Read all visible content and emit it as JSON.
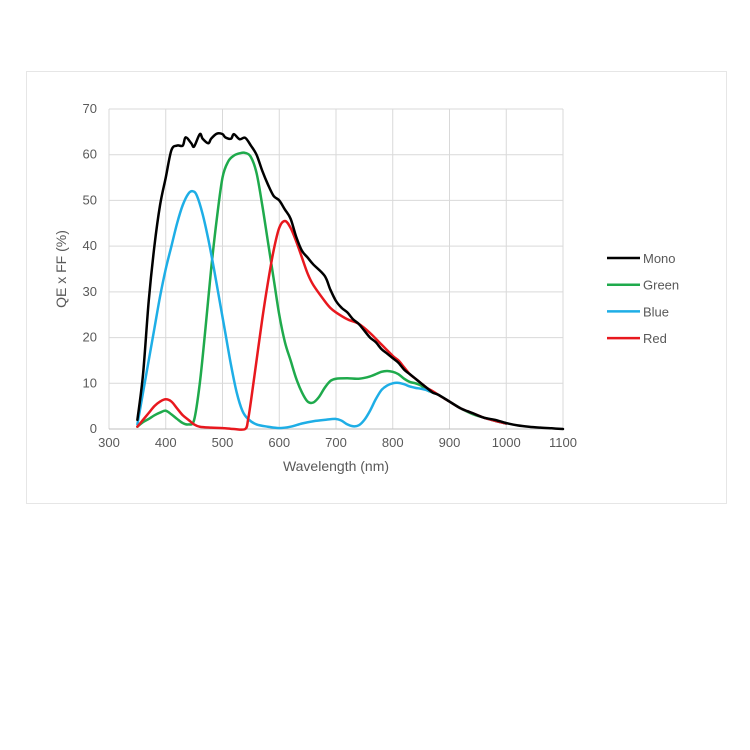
{
  "chart_data": {
    "type": "line",
    "title": "",
    "xlabel": "Wavelength (nm)",
    "ylabel": "QE x FF (%)",
    "xlim": [
      300,
      1100
    ],
    "ylim": [
      0,
      70
    ],
    "xticks": [
      "300",
      "400",
      "500",
      "600",
      "700",
      "800",
      "900",
      "1000",
      "1100"
    ],
    "yticks": [
      "0",
      "10",
      "20",
      "30",
      "40",
      "50",
      "60",
      "70"
    ],
    "grid": true,
    "legend_position": "right",
    "series": [
      {
        "name": "Mono",
        "color": "#000000",
        "points": [
          [
            350,
            2
          ],
          [
            360,
            12
          ],
          [
            370,
            28
          ],
          [
            380,
            40
          ],
          [
            390,
            49
          ],
          [
            400,
            55
          ],
          [
            410,
            61
          ],
          [
            420,
            62
          ],
          [
            430,
            62
          ],
          [
            435,
            63.8
          ],
          [
            445,
            62.5
          ],
          [
            450,
            61.8
          ],
          [
            460,
            64.5
          ],
          [
            465,
            63.5
          ],
          [
            475,
            62.5
          ],
          [
            480,
            63.5
          ],
          [
            490,
            64.6
          ],
          [
            500,
            64.5
          ],
          [
            505,
            63.8
          ],
          [
            515,
            63.5
          ],
          [
            520,
            64.5
          ],
          [
            530,
            63.4
          ],
          [
            540,
            63.7
          ],
          [
            550,
            62
          ],
          [
            560,
            60
          ],
          [
            570,
            56.5
          ],
          [
            580,
            53.5
          ],
          [
            590,
            51
          ],
          [
            600,
            50
          ],
          [
            610,
            48
          ],
          [
            620,
            46
          ],
          [
            630,
            42
          ],
          [
            640,
            39
          ],
          [
            650,
            37.5
          ],
          [
            660,
            36
          ],
          [
            680,
            33.5
          ],
          [
            690,
            30.5
          ],
          [
            700,
            28
          ],
          [
            710,
            26.5
          ],
          [
            720,
            25.5
          ],
          [
            730,
            24
          ],
          [
            740,
            23
          ],
          [
            750,
            21.5
          ],
          [
            760,
            20
          ],
          [
            770,
            19
          ],
          [
            780,
            17.5
          ],
          [
            790,
            16.5
          ],
          [
            800,
            15.5
          ],
          [
            810,
            14.5
          ],
          [
            820,
            13
          ],
          [
            830,
            12
          ],
          [
            840,
            11
          ],
          [
            850,
            10
          ],
          [
            860,
            9
          ],
          [
            870,
            8
          ],
          [
            880,
            7.5
          ],
          [
            900,
            6
          ],
          [
            920,
            4.5
          ],
          [
            940,
            3.5
          ],
          [
            960,
            2.5
          ],
          [
            980,
            2
          ],
          [
            1000,
            1.3
          ],
          [
            1020,
            0.8
          ],
          [
            1040,
            0.5
          ],
          [
            1060,
            0.3
          ],
          [
            1080,
            0.15
          ],
          [
            1100,
            0
          ]
        ]
      },
      {
        "name": "Green",
        "color": "#1faa4c",
        "points": [
          [
            350,
            0.5
          ],
          [
            360,
            1.5
          ],
          [
            370,
            2.2
          ],
          [
            380,
            3
          ],
          [
            390,
            3.6
          ],
          [
            400,
            4
          ],
          [
            410,
            3.2
          ],
          [
            420,
            2.2
          ],
          [
            430,
            1.3
          ],
          [
            440,
            1
          ],
          [
            450,
            2
          ],
          [
            460,
            10
          ],
          [
            470,
            22
          ],
          [
            480,
            35
          ],
          [
            490,
            46
          ],
          [
            500,
            55
          ],
          [
            510,
            58.5
          ],
          [
            520,
            59.8
          ],
          [
            530,
            60.3
          ],
          [
            540,
            60.4
          ],
          [
            550,
            59.5
          ],
          [
            560,
            56
          ],
          [
            570,
            49
          ],
          [
            580,
            41
          ],
          [
            590,
            33
          ],
          [
            600,
            25
          ],
          [
            610,
            19
          ],
          [
            620,
            15
          ],
          [
            630,
            11
          ],
          [
            640,
            8
          ],
          [
            650,
            6
          ],
          [
            660,
            5.8
          ],
          [
            670,
            7
          ],
          [
            680,
            9
          ],
          [
            690,
            10.5
          ],
          [
            700,
            11
          ],
          [
            720,
            11.1
          ],
          [
            740,
            11
          ],
          [
            760,
            11.5
          ],
          [
            780,
            12.5
          ],
          [
            790,
            12.7
          ],
          [
            800,
            12.5
          ],
          [
            810,
            12
          ],
          [
            820,
            11
          ],
          [
            830,
            10.3
          ],
          [
            840,
            10
          ],
          [
            850,
            9.5
          ],
          [
            860,
            8.5
          ],
          [
            880,
            7.5
          ],
          [
            900,
            6
          ],
          [
            920,
            4.5
          ],
          [
            940,
            3.3
          ],
          [
            960,
            2.5
          ],
          [
            980,
            1.8
          ],
          [
            1000,
            1.2
          ]
        ]
      },
      {
        "name": "Blue",
        "color": "#1eaee6",
        "points": [
          [
            350,
            1
          ],
          [
            360,
            8
          ],
          [
            370,
            15
          ],
          [
            380,
            22
          ],
          [
            390,
            29
          ],
          [
            400,
            35
          ],
          [
            410,
            40
          ],
          [
            420,
            45
          ],
          [
            430,
            49
          ],
          [
            440,
            51.5
          ],
          [
            448,
            52
          ],
          [
            455,
            51
          ],
          [
            465,
            47
          ],
          [
            475,
            41.5
          ],
          [
            485,
            35
          ],
          [
            495,
            28
          ],
          [
            505,
            21
          ],
          [
            515,
            14
          ],
          [
            525,
            8
          ],
          [
            535,
            4
          ],
          [
            545,
            2.2
          ],
          [
            560,
            1
          ],
          [
            580,
            0.5
          ],
          [
            600,
            0.2
          ],
          [
            620,
            0.5
          ],
          [
            640,
            1.2
          ],
          [
            660,
            1.7
          ],
          [
            680,
            2
          ],
          [
            700,
            2.2
          ],
          [
            710,
            1.8
          ],
          [
            720,
            1
          ],
          [
            730,
            0.6
          ],
          [
            740,
            0.8
          ],
          [
            750,
            2
          ],
          [
            760,
            4
          ],
          [
            770,
            6.5
          ],
          [
            780,
            8.5
          ],
          [
            790,
            9.5
          ],
          [
            800,
            10
          ],
          [
            810,
            10.1
          ],
          [
            820,
            9.8
          ],
          [
            830,
            9.3
          ],
          [
            840,
            9
          ],
          [
            850,
            8.8
          ],
          [
            860,
            8.5
          ],
          [
            870,
            8
          ],
          [
            880,
            7.5
          ],
          [
            900,
            6
          ],
          [
            920,
            4.5
          ],
          [
            940,
            3.5
          ],
          [
            960,
            2.5
          ],
          [
            980,
            1.8
          ],
          [
            1000,
            1.2
          ]
        ]
      },
      {
        "name": "Red",
        "color": "#e8181e",
        "points": [
          [
            350,
            0.5
          ],
          [
            360,
            2
          ],
          [
            370,
            3.5
          ],
          [
            380,
            5
          ],
          [
            390,
            6
          ],
          [
            400,
            6.5
          ],
          [
            410,
            6
          ],
          [
            420,
            4.5
          ],
          [
            430,
            3
          ],
          [
            440,
            2
          ],
          [
            450,
            1
          ],
          [
            460,
            0.5
          ],
          [
            480,
            0.3
          ],
          [
            500,
            0.2
          ],
          [
            520,
            0
          ],
          [
            540,
            0
          ],
          [
            545,
            2
          ],
          [
            550,
            6
          ],
          [
            560,
            15
          ],
          [
            570,
            24
          ],
          [
            580,
            32
          ],
          [
            590,
            39
          ],
          [
            600,
            44
          ],
          [
            610,
            45.5
          ],
          [
            620,
            44
          ],
          [
            630,
            41
          ],
          [
            640,
            37.5
          ],
          [
            650,
            34
          ],
          [
            660,
            31.5
          ],
          [
            680,
            28
          ],
          [
            690,
            26.5
          ],
          [
            700,
            25.5
          ],
          [
            720,
            24
          ],
          [
            740,
            23
          ],
          [
            760,
            21
          ],
          [
            780,
            18.5
          ],
          [
            800,
            16
          ],
          [
            810,
            15
          ],
          [
            820,
            13.5
          ],
          [
            830,
            12
          ],
          [
            840,
            11
          ],
          [
            850,
            10
          ],
          [
            860,
            9
          ],
          [
            870,
            8.3
          ],
          [
            880,
            7.5
          ],
          [
            900,
            6
          ],
          [
            920,
            4.5
          ],
          [
            940,
            3.5
          ],
          [
            960,
            2.5
          ],
          [
            980,
            1.8
          ],
          [
            1000,
            1.2
          ]
        ]
      }
    ]
  }
}
